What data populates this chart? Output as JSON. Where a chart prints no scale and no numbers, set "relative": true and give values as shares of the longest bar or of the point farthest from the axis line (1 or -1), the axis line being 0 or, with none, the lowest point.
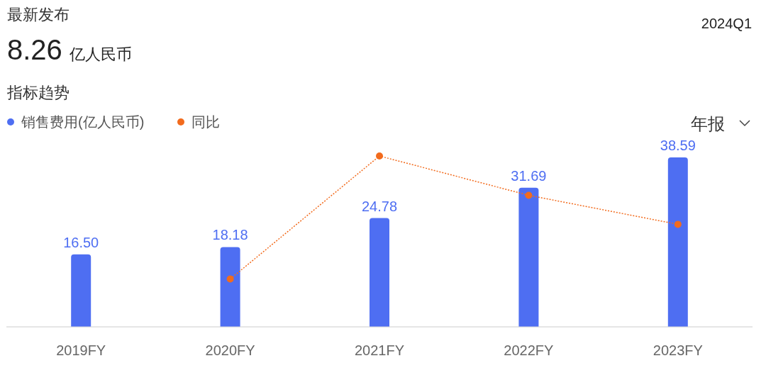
{
  "chart_data": [
    {
      "type": "bar",
      "title": "指标趋势",
      "annotations": [
        "最新发布",
        "8.26",
        "亿人民币",
        "2024Q1",
        "年报"
      ],
      "categories": [
        "2019FY",
        "2020FY",
        "2021FY",
        "2022FY",
        "2023FY"
      ],
      "series": [
        {
          "name": "销售费用(亿人民币)",
          "color": "#4e6ef2",
          "values": [
            16.5,
            18.18,
            24.78,
            31.69,
            38.59
          ],
          "value_labels": [
            "16.50",
            "18.18",
            "24.78",
            "31.69",
            "38.59"
          ]
        }
      ],
      "legend": "top left"
    },
    {
      "type": "line",
      "categories": [
        null,
        null,
        null,
        null,
        null
      ],
      "relative": true,
      "legend": "top left",
      "series": [
        {
          "name": "同比",
          "color": "#f26b1d",
          "values": [
            null,
            0.28,
            1,
            0.77,
            0.6
          ]
        }
      ],
      "marker": "circle",
      "line_style": "dotted"
    }
  ]
}
